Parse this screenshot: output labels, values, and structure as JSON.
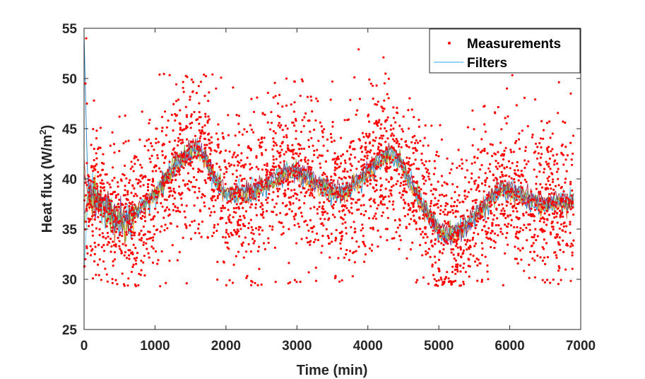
{
  "chart_data": {
    "type": "scatter",
    "title": "",
    "xlabel": "Time (min)",
    "ylabel_main": "Heat flux (W/m",
    "ylabel_sup": "2",
    "ylabel_close": ")",
    "xlim": [
      0,
      7000
    ],
    "ylim": [
      25,
      55
    ],
    "xticks": [
      0,
      1000,
      2000,
      3000,
      4000,
      5000,
      6000,
      7000
    ],
    "yticks": [
      25,
      30,
      35,
      40,
      45,
      50,
      55
    ],
    "xtick_labels": [
      "0",
      "1000",
      "2000",
      "3000",
      "4000",
      "5000",
      "6000",
      "7000"
    ],
    "ytick_labels": [
      "25",
      "30",
      "35",
      "40",
      "45",
      "50",
      "55"
    ],
    "grid": false,
    "legend": {
      "position": "top-right",
      "measurements_label": "Measurements",
      "filters_label": "Filters"
    },
    "series": [
      {
        "name": "Measurements",
        "kind": "scatter",
        "color": "#ff0000",
        "trend": [
          [
            0,
            36.5
          ],
          [
            150,
            38.5
          ],
          [
            300,
            37
          ],
          [
            450,
            36
          ],
          [
            550,
            35.5
          ],
          [
            700,
            36.5
          ],
          [
            1000,
            38.5
          ],
          [
            1300,
            41.5
          ],
          [
            1500,
            42.8
          ],
          [
            1600,
            43
          ],
          [
            1700,
            42
          ],
          [
            1850,
            40
          ],
          [
            2000,
            38.5
          ],
          [
            2300,
            38.5
          ],
          [
            2600,
            39.5
          ],
          [
            2800,
            40.5
          ],
          [
            2950,
            40.8
          ],
          [
            3100,
            40.3
          ],
          [
            3300,
            39.5
          ],
          [
            3500,
            38.8
          ],
          [
            3650,
            38.5
          ],
          [
            3900,
            40
          ],
          [
            4100,
            41.5
          ],
          [
            4300,
            42.5
          ],
          [
            4450,
            42
          ],
          [
            4600,
            39.5
          ],
          [
            4800,
            37
          ],
          [
            5000,
            35
          ],
          [
            5150,
            34.3
          ],
          [
            5300,
            34.8
          ],
          [
            5600,
            37
          ],
          [
            5900,
            39.2
          ],
          [
            6100,
            38.5
          ],
          [
            6400,
            37.5
          ],
          [
            6900,
            37.8
          ]
        ],
        "noise_sd": 3.9,
        "count": 3000,
        "outliers": [
          [
            30,
            54
          ],
          [
            20,
            49.5
          ],
          [
            40,
            47.5
          ],
          [
            140,
            47.8
          ],
          [
            3870,
            52.9
          ],
          [
            4220,
            52.1
          ],
          [
            1810,
            50.4
          ],
          [
            2100,
            49.1
          ],
          [
            3500,
            49.7
          ],
          [
            5960,
            49.0
          ],
          [
            6860,
            48.5
          ],
          [
            500,
            46.2
          ],
          [
            580,
            46.3
          ]
        ]
      },
      {
        "name": "Filters",
        "kind": "line-ensemble",
        "colors": [
          "#0072bd",
          "#d95319",
          "#edb120",
          "#7e2f8e",
          "#77ac30",
          "#4dbeee",
          "#a2142f"
        ],
        "initial_values": [
          54.5,
          42.0,
          38.5,
          36.5,
          35.5,
          31.0,
          40.5
        ],
        "trend": [
          [
            0,
            37
          ],
          [
            60,
            38.8
          ],
          [
            150,
            38
          ],
          [
            300,
            37
          ],
          [
            450,
            36
          ],
          [
            550,
            35.7
          ],
          [
            700,
            36.5
          ],
          [
            1000,
            38.5
          ],
          [
            1300,
            41.5
          ],
          [
            1500,
            42.8
          ],
          [
            1600,
            43
          ],
          [
            1700,
            42
          ],
          [
            1850,
            40
          ],
          [
            2000,
            38.5
          ],
          [
            2300,
            38.5
          ],
          [
            2600,
            39.5
          ],
          [
            2800,
            40.5
          ],
          [
            2950,
            40.8
          ],
          [
            3100,
            40.3
          ],
          [
            3300,
            39.5
          ],
          [
            3500,
            38.8
          ],
          [
            3650,
            38.5
          ],
          [
            3900,
            40
          ],
          [
            4100,
            41.5
          ],
          [
            4300,
            42.5
          ],
          [
            4450,
            42
          ],
          [
            4600,
            39.5
          ],
          [
            4800,
            37
          ],
          [
            5000,
            35
          ],
          [
            5150,
            34.3
          ],
          [
            5300,
            34.8
          ],
          [
            5600,
            37
          ],
          [
            5900,
            39.2
          ],
          [
            6100,
            38.5
          ],
          [
            6400,
            37.5
          ],
          [
            6900,
            37.8
          ]
        ]
      }
    ]
  }
}
